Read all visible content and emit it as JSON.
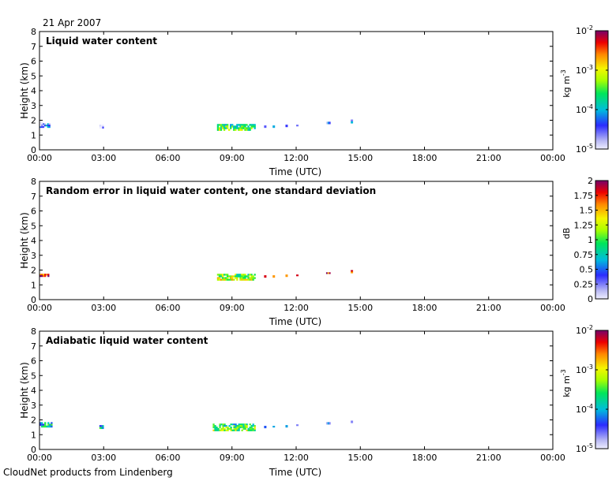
{
  "header": {
    "date": "21 Apr 2007"
  },
  "footer": {
    "credit": "CloudNet products from Lindenberg"
  },
  "chart_data": [
    {
      "type": "heatmap",
      "title": "Liquid water content",
      "xlabel": "Time (UTC)",
      "ylabel": "Height (km)",
      "xlim": [
        0,
        24
      ],
      "ylim": [
        0,
        8
      ],
      "xticks": [
        "00:00",
        "03:00",
        "06:00",
        "09:00",
        "12:00",
        "15:00",
        "18:00",
        "21:00",
        "00:00"
      ],
      "yticks": [
        "0",
        "1",
        "2",
        "3",
        "4",
        "5",
        "6",
        "7",
        "8"
      ],
      "colorbar": {
        "label_base": "kg m",
        "label_exp": "-3",
        "scale": "log",
        "ticks": [
          {
            "base": "10",
            "exp": "-2"
          },
          {
            "base": "10",
            "exp": "-3"
          },
          {
            "base": "10",
            "exp": "-4"
          },
          {
            "base": "10",
            "exp": "-5"
          }
        ]
      },
      "features": [
        {
          "t0": 0.0,
          "t1": 0.5,
          "h0": 1.5,
          "h1": 1.8,
          "level": 0.25
        },
        {
          "t0": 0.0,
          "t1": 0.15,
          "h0": 1.6,
          "h1": 1.95,
          "level": 0.05
        },
        {
          "t0": 2.8,
          "t1": 3.0,
          "h0": 1.45,
          "h1": 1.7,
          "level": 0.02
        },
        {
          "t0": 8.3,
          "t1": 10.1,
          "h0": 1.3,
          "h1": 1.75,
          "level": 0.5
        },
        {
          "t0": 10.5,
          "t1": 10.6,
          "h0": 1.5,
          "h1": 1.65,
          "level": 0.25
        },
        {
          "t0": 10.9,
          "t1": 11.0,
          "h0": 1.5,
          "h1": 1.65,
          "level": 0.25
        },
        {
          "t0": 11.5,
          "t1": 11.6,
          "h0": 1.55,
          "h1": 1.7,
          "level": 0.3
        },
        {
          "t0": 12.0,
          "t1": 12.1,
          "h0": 1.6,
          "h1": 1.7,
          "level": 0.25
        },
        {
          "t0": 13.4,
          "t1": 13.6,
          "h0": 1.75,
          "h1": 1.9,
          "level": 0.25
        },
        {
          "t0": 14.55,
          "t1": 14.65,
          "h0": 1.8,
          "h1": 2.05,
          "level": 0.25
        }
      ]
    },
    {
      "type": "heatmap",
      "title": "Random error in liquid water content, one standard deviation",
      "xlabel": "Time (UTC)",
      "ylabel": "Height (km)",
      "xlim": [
        0,
        24
      ],
      "ylim": [
        0,
        8
      ],
      "xticks": [
        "00:00",
        "03:00",
        "06:00",
        "09:00",
        "12:00",
        "15:00",
        "18:00",
        "21:00",
        "00:00"
      ],
      "yticks": [
        "0",
        "1",
        "2",
        "3",
        "4",
        "5",
        "6",
        "7",
        "8"
      ],
      "colorbar": {
        "label_base": "dB",
        "label_exp": "",
        "scale": "linear",
        "range": [
          0,
          2
        ],
        "ticks": [
          {
            "base": "2",
            "exp": ""
          },
          {
            "base": "1.75",
            "exp": ""
          },
          {
            "base": "1.5",
            "exp": ""
          },
          {
            "base": "1.25",
            "exp": ""
          },
          {
            "base": "1",
            "exp": ""
          },
          {
            "base": "0.75",
            "exp": ""
          },
          {
            "base": "0.5",
            "exp": ""
          },
          {
            "base": "0.25",
            "exp": ""
          },
          {
            "base": "0",
            "exp": ""
          }
        ]
      },
      "features": [
        {
          "t0": 0.0,
          "t1": 0.45,
          "h0": 1.55,
          "h1": 1.75,
          "level": 0.95
        },
        {
          "t0": 8.3,
          "t1": 10.1,
          "h0": 1.3,
          "h1": 1.75,
          "level": 0.6
        },
        {
          "t0": 10.5,
          "t1": 10.6,
          "h0": 1.5,
          "h1": 1.65,
          "level": 0.95
        },
        {
          "t0": 10.9,
          "t1": 11.0,
          "h0": 1.5,
          "h1": 1.65,
          "level": 0.95
        },
        {
          "t0": 11.5,
          "t1": 11.6,
          "h0": 1.55,
          "h1": 1.7,
          "level": 0.95
        },
        {
          "t0": 12.0,
          "t1": 12.1,
          "h0": 1.6,
          "h1": 1.7,
          "level": 0.95
        },
        {
          "t0": 13.4,
          "t1": 13.6,
          "h0": 1.75,
          "h1": 1.85,
          "level": 0.95
        },
        {
          "t0": 14.55,
          "t1": 14.65,
          "h0": 1.8,
          "h1": 2.0,
          "level": 0.95
        }
      ]
    },
    {
      "type": "heatmap",
      "title": "Adiabatic liquid water content",
      "xlabel": "Time (UTC)",
      "ylabel": "Height (km)",
      "xlim": [
        0,
        24
      ],
      "ylim": [
        0,
        8
      ],
      "xticks": [
        "00:00",
        "03:00",
        "06:00",
        "09:00",
        "12:00",
        "15:00",
        "18:00",
        "21:00",
        "00:00"
      ],
      "yticks": [
        "0",
        "1",
        "2",
        "3",
        "4",
        "5",
        "6",
        "7",
        "8"
      ],
      "colorbar": {
        "label_base": "kg m",
        "label_exp": "-3",
        "scale": "log",
        "ticks": [
          {
            "base": "10",
            "exp": "-2"
          },
          {
            "base": "10",
            "exp": "-3"
          },
          {
            "base": "10",
            "exp": "-4"
          },
          {
            "base": "10",
            "exp": "-5"
          }
        ]
      },
      "features": [
        {
          "t0": 0.0,
          "t1": 0.6,
          "h0": 1.5,
          "h1": 1.85,
          "level": 0.4
        },
        {
          "t0": 2.8,
          "t1": 3.0,
          "h0": 1.4,
          "h1": 1.65,
          "level": 0.35
        },
        {
          "t0": 8.1,
          "t1": 10.1,
          "h0": 1.25,
          "h1": 1.75,
          "level": 0.5
        },
        {
          "t0": 10.5,
          "t1": 10.6,
          "h0": 1.45,
          "h1": 1.6,
          "level": 0.25
        },
        {
          "t0": 10.9,
          "t1": 11.0,
          "h0": 1.5,
          "h1": 1.6,
          "level": 0.25
        },
        {
          "t0": 11.5,
          "t1": 11.6,
          "h0": 1.5,
          "h1": 1.65,
          "level": 0.3
        },
        {
          "t0": 12.0,
          "t1": 12.1,
          "h0": 1.6,
          "h1": 1.7,
          "level": 0.25
        },
        {
          "t0": 13.4,
          "t1": 13.6,
          "h0": 1.7,
          "h1": 1.85,
          "level": 0.25
        },
        {
          "t0": 14.55,
          "t1": 14.65,
          "h0": 1.8,
          "h1": 1.95,
          "level": 0.25
        }
      ]
    }
  ]
}
